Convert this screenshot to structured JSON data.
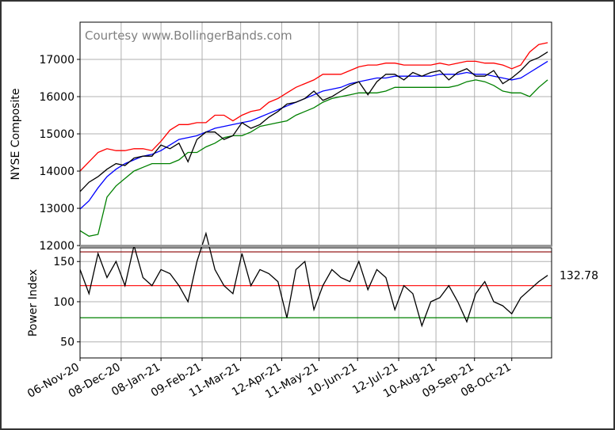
{
  "chart_data": [
    {
      "type": "line",
      "annotation": "Courtesy www.BollingerBands.com",
      "ylabel": "NYSE Composite",
      "x": [
        "2020-11-06",
        "2020-11-13",
        "2020-11-20",
        "2020-11-27",
        "2020-12-04",
        "2020-12-11",
        "2020-12-18",
        "2020-12-25",
        "2021-01-01",
        "2021-01-08",
        "2021-01-15",
        "2021-01-22",
        "2021-01-29",
        "2021-02-05",
        "2021-02-12",
        "2021-02-19",
        "2021-02-26",
        "2021-03-05",
        "2021-03-12",
        "2021-03-19",
        "2021-03-26",
        "2021-04-02",
        "2021-04-09",
        "2021-04-16",
        "2021-04-23",
        "2021-04-30",
        "2021-05-07",
        "2021-05-14",
        "2021-05-21",
        "2021-05-28",
        "2021-06-04",
        "2021-06-11",
        "2021-06-18",
        "2021-06-25",
        "2021-07-02",
        "2021-07-09",
        "2021-07-16",
        "2021-07-23",
        "2021-07-30",
        "2021-08-06",
        "2021-08-13",
        "2021-08-20",
        "2021-08-27",
        "2021-09-03",
        "2021-09-10",
        "2021-09-17",
        "2021-09-24",
        "2021-10-01",
        "2021-10-08",
        "2021-10-15",
        "2021-10-22",
        "2021-10-29",
        "2021-11-05"
      ],
      "series": [
        {
          "color": "#ff0000",
          "values": [
            14000,
            14250,
            14500,
            14600,
            14550,
            14550,
            14600,
            14600,
            14550,
            14800,
            15100,
            15250,
            15250,
            15300,
            15300,
            15500,
            15500,
            15350,
            15500,
            15600,
            15650,
            15850,
            15950,
            16100,
            16250,
            16350,
            16450,
            16600,
            16600,
            16600,
            16700,
            16800,
            16850,
            16850,
            16900,
            16900,
            16850,
            16850,
            16850,
            16850,
            16900,
            16850,
            16900,
            16950,
            16950,
            16900,
            16900,
            16850,
            16750,
            16850,
            17200,
            17400,
            17450
          ]
        },
        {
          "color": "#0000ff",
          "values": [
            12980,
            13200,
            13550,
            13850,
            14050,
            14200,
            14300,
            14400,
            14450,
            14550,
            14700,
            14850,
            14900,
            14950,
            15050,
            15150,
            15200,
            15250,
            15300,
            15350,
            15450,
            15550,
            15650,
            15750,
            15850,
            15950,
            16050,
            16150,
            16200,
            16250,
            16350,
            16400,
            16450,
            16500,
            16500,
            16550,
            16550,
            16550,
            16550,
            16550,
            16600,
            16600,
            16600,
            16650,
            16600,
            16600,
            16550,
            16500,
            16450,
            16500,
            16650,
            16800,
            16950
          ]
        },
        {
          "color": "#008000",
          "values": [
            12400,
            12250,
            12300,
            13300,
            13600,
            13800,
            14000,
            14100,
            14200,
            14200,
            14200,
            14300,
            14500,
            14500,
            14650,
            14750,
            14900,
            14950,
            14950,
            15050,
            15200,
            15250,
            15300,
            15350,
            15500,
            15600,
            15700,
            15850,
            15950,
            16000,
            16050,
            16100,
            16100,
            16100,
            16150,
            16250,
            16250,
            16250,
            16250,
            16250,
            16250,
            16250,
            16300,
            16400,
            16450,
            16400,
            16300,
            16150,
            16100,
            16100,
            16000,
            16250,
            16450
          ]
        },
        {
          "color": "#000000",
          "values": [
            13450,
            13700,
            13850,
            14050,
            14200,
            14150,
            14350,
            14400,
            14400,
            14700,
            14600,
            14750,
            14250,
            14850,
            15050,
            15050,
            14850,
            14950,
            15300,
            15150,
            15250,
            15450,
            15600,
            15800,
            15850,
            15950,
            16150,
            15900,
            16000,
            16150,
            16300,
            16400,
            16050,
            16400,
            16600,
            16600,
            16450,
            16650,
            16550,
            16650,
            16700,
            16450,
            16650,
            16750,
            16550,
            16550,
            16700,
            16350,
            16500,
            16700,
            16950,
            17050,
            17200
          ]
        }
      ],
      "xlim": [
        "2020-11-06",
        "2021-11-08"
      ],
      "xticks": [
        {
          "value": "2020-11-06",
          "label": "06-Nov-20"
        },
        {
          "value": "2020-12-08",
          "label": "08-Dec-20"
        },
        {
          "value": "2021-01-08",
          "label": "08-Jan-21"
        },
        {
          "value": "2021-02-09",
          "label": "09-Feb-21"
        },
        {
          "value": "2021-03-11",
          "label": "11-Mar-21"
        },
        {
          "value": "2021-04-12",
          "label": "12-Apr-21"
        },
        {
          "value": "2021-05-11",
          "label": "11-May-21"
        },
        {
          "value": "2021-06-10",
          "label": "10-Jun-21"
        },
        {
          "value": "2021-07-12",
          "label": "12-Jul-21"
        },
        {
          "value": "2021-08-10",
          "label": "10-Aug-21"
        },
        {
          "value": "2021-09-09",
          "label": "09-Sep-21"
        },
        {
          "value": "2021-10-08",
          "label": "08-Oct-21"
        }
      ],
      "ylim": [
        11980,
        18000
      ],
      "yticks": [
        12000,
        13000,
        14000,
        15000,
        16000,
        17000
      ],
      "grid": true
    },
    {
      "type": "line",
      "ylabel": "Power Index",
      "x": [
        "2020-11-06",
        "2020-11-13",
        "2020-11-20",
        "2020-11-27",
        "2020-12-04",
        "2020-12-11",
        "2020-12-18",
        "2020-12-25",
        "2021-01-01",
        "2021-01-08",
        "2021-01-15",
        "2021-01-22",
        "2021-01-29",
        "2021-02-05",
        "2021-02-12",
        "2021-02-19",
        "2021-02-26",
        "2021-03-05",
        "2021-03-12",
        "2021-03-19",
        "2021-03-26",
        "2021-04-02",
        "2021-04-09",
        "2021-04-16",
        "2021-04-23",
        "2021-04-30",
        "2021-05-07",
        "2021-05-14",
        "2021-05-21",
        "2021-05-28",
        "2021-06-04",
        "2021-06-11",
        "2021-06-18",
        "2021-06-25",
        "2021-07-02",
        "2021-07-09",
        "2021-07-16",
        "2021-07-23",
        "2021-07-30",
        "2021-08-06",
        "2021-08-13",
        "2021-08-20",
        "2021-08-27",
        "2021-09-03",
        "2021-09-10",
        "2021-09-17",
        "2021-09-24",
        "2021-10-01",
        "2021-10-08",
        "2021-10-15",
        "2021-10-22",
        "2021-10-29",
        "2021-11-05"
      ],
      "series": [
        {
          "color": "#000000",
          "values": [
            140,
            110,
            160,
            130,
            150,
            120,
            170,
            130,
            120,
            140,
            135,
            120,
            100,
            150,
            185,
            140,
            120,
            110,
            160,
            120,
            140,
            135,
            125,
            80,
            140,
            150,
            90,
            120,
            140,
            130,
            125,
            150,
            115,
            140,
            130,
            90,
            120,
            110,
            70,
            100,
            105,
            120,
            100,
            75,
            110,
            125,
            100,
            95,
            85,
            105,
            115,
            125,
            132.78
          ]
        }
      ],
      "hlines": [
        {
          "value": 162,
          "color": "#8b0000"
        },
        {
          "value": 120,
          "color": "#ff0000"
        },
        {
          "value": 80,
          "color": "#008000"
        }
      ],
      "xlim": [
        "2020-11-06",
        "2021-11-08"
      ],
      "xticks": [
        {
          "value": "2020-11-06",
          "label": "06-Nov-20"
        },
        {
          "value": "2020-12-08",
          "label": "08-Dec-20"
        },
        {
          "value": "2021-01-08",
          "label": "08-Jan-21"
        },
        {
          "value": "2021-02-09",
          "label": "09-Feb-21"
        },
        {
          "value": "2021-03-11",
          "label": "11-Mar-21"
        },
        {
          "value": "2021-04-12",
          "label": "12-Apr-21"
        },
        {
          "value": "2021-05-11",
          "label": "11-May-21"
        },
        {
          "value": "2021-06-10",
          "label": "10-Jun-21"
        },
        {
          "value": "2021-07-12",
          "label": "12-Jul-21"
        },
        {
          "value": "2021-08-10",
          "label": "10-Aug-21"
        },
        {
          "value": "2021-09-09",
          "label": "09-Sep-21"
        },
        {
          "value": "2021-10-08",
          "label": "08-Oct-21"
        }
      ],
      "ylim": [
        30,
        167
      ],
      "yticks": [
        50,
        100,
        150
      ],
      "grid": true
    }
  ]
}
